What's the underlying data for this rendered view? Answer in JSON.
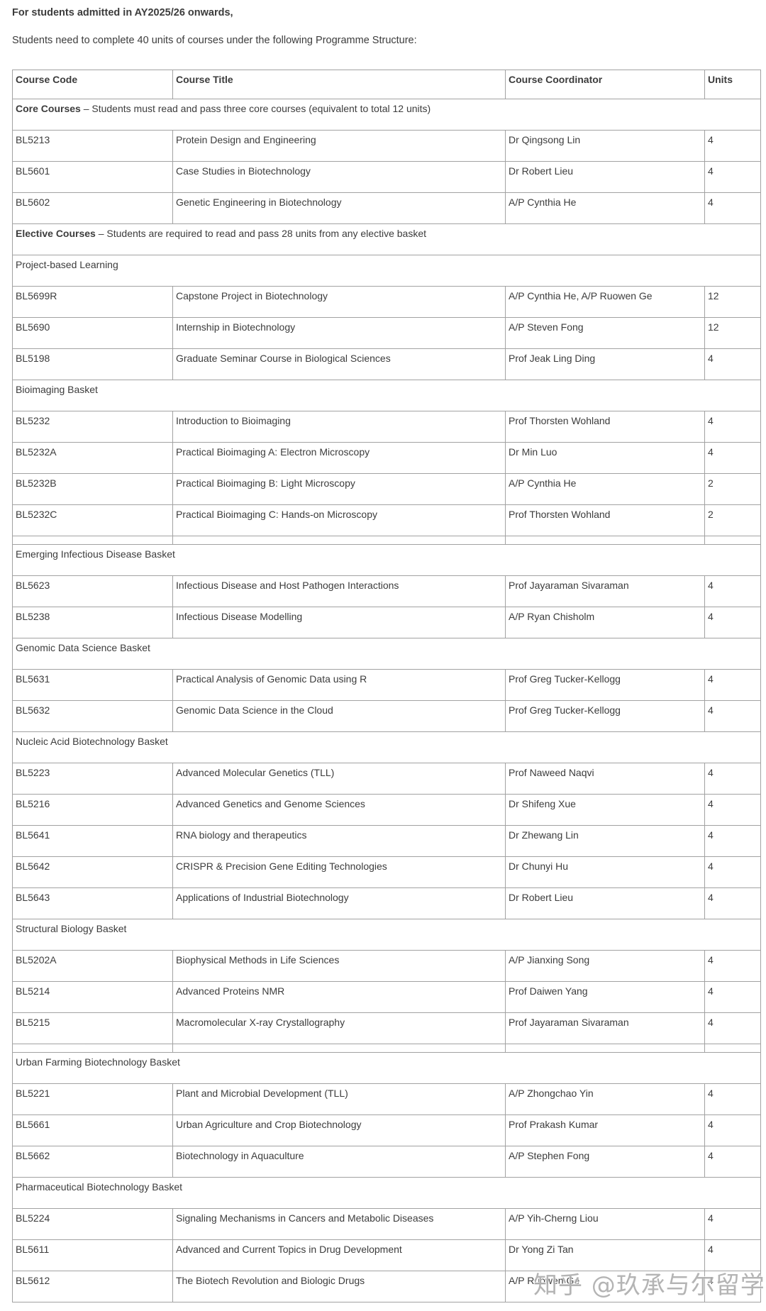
{
  "page": {
    "intro_bold": "For students admitted in AY2025/26 onwards,",
    "intro_text": "Students need to complete 40 units of courses under the following Programme Structure:"
  },
  "colors": {
    "text": "#3c3c3c",
    "border": "#a2a2a2",
    "watermark": "#aeaeae"
  },
  "watermark": {
    "text": "知乎 @玖承与尔留学"
  },
  "table": {
    "headers": [
      "Course Code",
      "Course Title",
      "Course Coordinator",
      "Units"
    ],
    "rows": [
      {
        "type": "section",
        "lead": "Core Courses",
        "rest": " – Students must read and pass three core courses (equivalent to total 12 units)"
      },
      {
        "type": "course",
        "code": "BL5213",
        "title": "Protein Design and Engineering",
        "coordinator": "Dr Qingsong Lin",
        "units": "4"
      },
      {
        "type": "course",
        "code": "BL5601",
        "title": "Case Studies in Biotechnology",
        "coordinator": "Dr Robert Lieu",
        "units": "4"
      },
      {
        "type": "course",
        "code": "BL5602",
        "title": "Genetic Engineering in Biotechnology",
        "coordinator": "A/P Cynthia He",
        "units": "4"
      },
      {
        "type": "section",
        "lead": "Elective Courses",
        "rest": " – Students are required to read and pass 28 units from any elective basket"
      },
      {
        "type": "section",
        "label": "Project-based Learning"
      },
      {
        "type": "course",
        "code": "BL5699R",
        "title": "Capstone Project in Biotechnology",
        "coordinator": "A/P Cynthia He, A/P Ruowen Ge",
        "units": "12"
      },
      {
        "type": "course",
        "code": "BL5690",
        "title": "Internship in Biotechnology",
        "coordinator": "A/P Steven Fong",
        "units": "12"
      },
      {
        "type": "course",
        "code": "BL5198",
        "title": "Graduate Seminar Course in Biological Sciences",
        "coordinator": "Prof Jeak Ling Ding",
        "units": "4"
      },
      {
        "type": "section",
        "label": "Bioimaging Basket"
      },
      {
        "type": "course",
        "code": "BL5232",
        "title": "Introduction to Bioimaging",
        "coordinator": "Prof Thorsten Wohland",
        "units": "4"
      },
      {
        "type": "course",
        "code": "BL5232A",
        "title": "Practical Bioimaging A: Electron Microscopy",
        "coordinator": "Dr Min Luo",
        "units": "4"
      },
      {
        "type": "course",
        "code": "BL5232B",
        "title": "Practical Bioimaging B: Light Microscopy",
        "coordinator": "A/P Cynthia He",
        "units": "2"
      },
      {
        "type": "course",
        "code": "BL5232C",
        "title": "Practical Bioimaging C: Hands-on Microscopy",
        "coordinator": "Prof Thorsten Wohland",
        "units": "2"
      },
      {
        "type": "spacer"
      },
      {
        "type": "section",
        "label": "Emerging Infectious Disease Basket"
      },
      {
        "type": "course",
        "code": "BL5623",
        "title": "Infectious Disease and Host Pathogen Interactions",
        "coordinator": "Prof Jayaraman Sivaraman",
        "units": "4"
      },
      {
        "type": "course",
        "code": "BL5238",
        "title": "Infectious Disease Modelling",
        "coordinator": "A/P Ryan Chisholm",
        "units": "4"
      },
      {
        "type": "section",
        "label": "Genomic Data Science Basket"
      },
      {
        "type": "course",
        "code": "BL5631",
        "title": "Practical Analysis of Genomic Data using R",
        "coordinator": "Prof Greg Tucker-Kellogg",
        "units": "4"
      },
      {
        "type": "course",
        "code": "BL5632",
        "title": "Genomic Data Science in the Cloud",
        "coordinator": "Prof Greg Tucker-Kellogg",
        "units": "4"
      },
      {
        "type": "section",
        "label": "Nucleic Acid Biotechnology Basket"
      },
      {
        "type": "course",
        "code": "BL5223",
        "title": "Advanced Molecular Genetics (TLL)",
        "coordinator": "Prof Naweed Naqvi",
        "units": "4"
      },
      {
        "type": "course",
        "code": "BL5216",
        "title": "Advanced Genetics and Genome Sciences",
        "coordinator": "Dr Shifeng Xue",
        "units": "4"
      },
      {
        "type": "course",
        "code": "BL5641",
        "title": "RNA biology and therapeutics",
        "coordinator": "Dr Zhewang Lin",
        "units": "4"
      },
      {
        "type": "course",
        "code": "BL5642",
        "title": "CRISPR & Precision Gene Editing Technologies",
        "coordinator": "Dr Chunyi Hu",
        "units": "4"
      },
      {
        "type": "course",
        "code": "BL5643",
        "title": "Applications of Industrial Biotechnology",
        "coordinator": "Dr Robert Lieu",
        "units": "4"
      },
      {
        "type": "section",
        "label": "Structural Biology Basket"
      },
      {
        "type": "course",
        "code": "BL5202A",
        "title": "Biophysical Methods in Life Sciences",
        "coordinator": "A/P Jianxing Song",
        "units": "4"
      },
      {
        "type": "course",
        "code": "BL5214",
        "title": "Advanced Proteins NMR",
        "coordinator": "Prof Daiwen Yang",
        "units": "4"
      },
      {
        "type": "course",
        "code": "BL5215",
        "title": "Macromolecular X-ray Crystallography",
        "coordinator": "Prof Jayaraman Sivaraman",
        "units": "4"
      },
      {
        "type": "spacer"
      },
      {
        "type": "section",
        "label": "Urban Farming Biotechnology Basket"
      },
      {
        "type": "course",
        "code": "BL5221",
        "title": "Plant and Microbial Development (TLL)",
        "coordinator": "A/P Zhongchao Yin",
        "units": "4"
      },
      {
        "type": "course",
        "code": "BL5661",
        "title": "Urban Agriculture and Crop Biotechnology",
        "coordinator": "Prof Prakash Kumar",
        "units": "4"
      },
      {
        "type": "course",
        "code": "BL5662",
        "title": "Biotechnology in Aquaculture",
        "coordinator": "A/P Stephen Fong",
        "units": "4"
      },
      {
        "type": "section",
        "label": "Pharmaceutical Biotechnology Basket"
      },
      {
        "type": "course",
        "code": "BL5224",
        "title": "Signaling Mechanisms in Cancers and Metabolic Diseases",
        "coordinator": "A/P Yih-Cherng Liou",
        "units": "4"
      },
      {
        "type": "course",
        "code": "BL5611",
        "title": "Advanced and Current Topics in Drug Development",
        "coordinator": "Dr Yong Zi Tan",
        "units": "4"
      },
      {
        "type": "course",
        "code": "BL5612",
        "title": "The Biotech Revolution and Biologic Drugs",
        "coordinator": "A/P Ruowen Ge",
        "units": "4"
      }
    ]
  }
}
